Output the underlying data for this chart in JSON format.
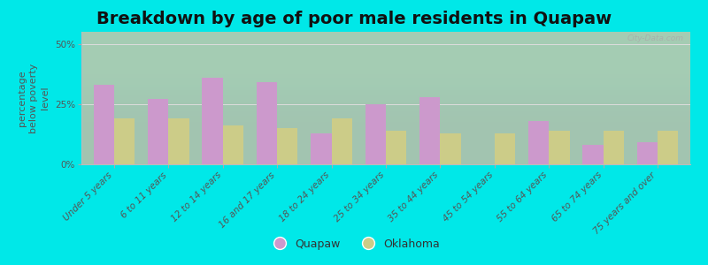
{
  "title": "Breakdown by age of poor male residents in Quapaw",
  "categories": [
    "Under 5 years",
    "6 to 11 years",
    "12 to 14 years",
    "16 and 17 years",
    "18 to 24 years",
    "25 to 34 years",
    "35 to 44 years",
    "45 to 54 years",
    "55 to 64 years",
    "65 to 74 years",
    "75 years and over"
  ],
  "quapaw_values": [
    33,
    27,
    36,
    34,
    13,
    25,
    28,
    0,
    18,
    8,
    9
  ],
  "oklahoma_values": [
    19,
    19,
    16,
    15,
    19,
    14,
    13,
    13,
    14,
    14,
    14
  ],
  "quapaw_color": "#cc99cc",
  "oklahoma_color": "#cccc88",
  "outer_bg": "#00e8e8",
  "plot_bg": "#e8f5e8",
  "ylabel": "percentage\nbelow poverty\nlevel",
  "ylim": [
    0,
    55
  ],
  "yticks": [
    0,
    25,
    50
  ],
  "ytick_labels": [
    "0%",
    "25%",
    "50%"
  ],
  "bar_width": 0.38,
  "title_fontsize": 14,
  "axis_label_fontsize": 8,
  "tick_label_fontsize": 7.5,
  "legend_fontsize": 9,
  "watermark": "City-Data.com"
}
